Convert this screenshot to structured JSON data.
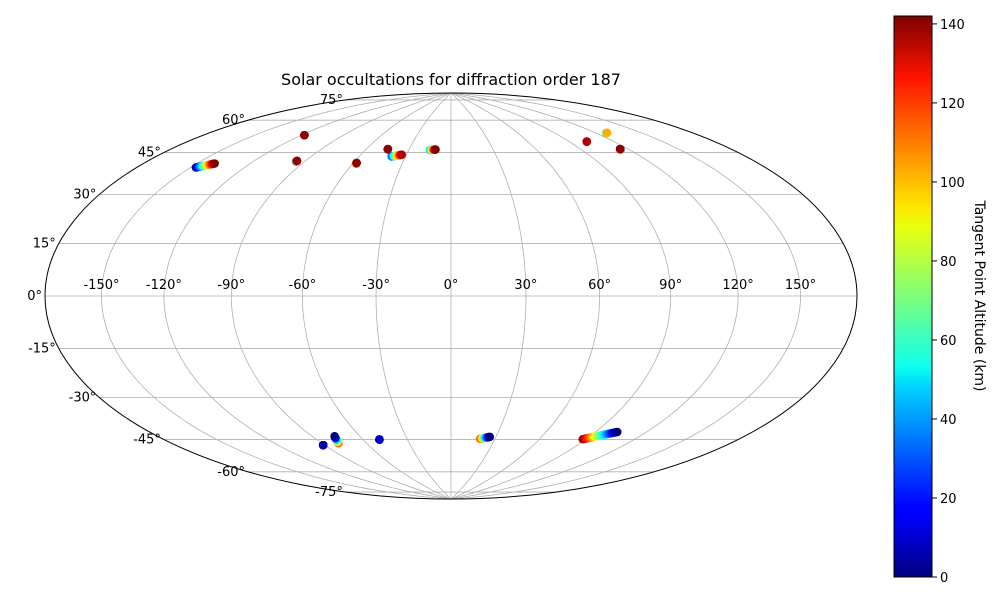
{
  "chart_data": {
    "type": "scatter",
    "projection": "hammer",
    "title": "Solar occultations for diffraction order 187",
    "xlabel": "",
    "ylabel": "",
    "lon_ticks": [
      "-150°",
      "-120°",
      "-90°",
      "-60°",
      "-30°",
      "0°",
      "30°",
      "60°",
      "90°",
      "120°",
      "150°"
    ],
    "lat_ticks": [
      "75°",
      "60°",
      "45°",
      "30°",
      "15°",
      "0°",
      "-15°",
      "-30°",
      "-45°",
      "-60°",
      "-75°"
    ],
    "grid": true,
    "colorbar": {
      "label": "Tangent Point Altitude (km)",
      "colormap": "jet",
      "range": [
        0,
        142
      ],
      "ticks": [
        "0",
        "20",
        "40",
        "60",
        "80",
        "100",
        "120",
        "140"
      ]
    },
    "occultations": [
      {
        "lon_start": -147,
        "lat_start": 44,
        "lon_end": -140,
        "lat_end": 46.5,
        "alt_start": 0,
        "alt_end": 142
      },
      {
        "lon_start": -118,
        "lat_start": 62,
        "lon_end": -118,
        "lat_end": 62,
        "alt_start": 135,
        "alt_end": 140
      },
      {
        "lon_start": -95,
        "lat_start": 52,
        "lon_end": -95,
        "lat_end": 52.3,
        "alt_start": 0,
        "alt_end": 140
      },
      {
        "lon_start": -58,
        "lat_start": 53.5,
        "lon_end": -58,
        "lat_end": 53.8,
        "alt_start": 30,
        "alt_end": 140
      },
      {
        "lon_start": -45,
        "lat_start": 60.5,
        "lon_end": -45,
        "lat_end": 60.7,
        "alt_start": 20,
        "alt_end": 140
      },
      {
        "lon_start": -39,
        "lat_start": 57.5,
        "lon_end": -33,
        "lat_end": 58.5,
        "alt_start": 25,
        "alt_end": 135
      },
      {
        "lon_start": -15,
        "lat_start": 61,
        "lon_end": -11,
        "lat_end": 61.3,
        "alt_start": 40,
        "alt_end": 142
      },
      {
        "lon_start": 102,
        "lat_start": 60.5,
        "lon_end": 102,
        "lat_end": 60.5,
        "alt_start": 0,
        "alt_end": 135
      },
      {
        "lon_start": 115,
        "lat_start": 55.5,
        "lon_end": 115,
        "lat_end": 55.7,
        "alt_start": 30,
        "alt_end": 140
      },
      {
        "lon_start": 127,
        "lat_start": 62,
        "lon_end": 128,
        "lat_end": 62,
        "alt_start": 40,
        "alt_end": 100
      },
      {
        "lon_start": -91,
        "lat_start": -59,
        "lon_end": -91,
        "lat_end": -59,
        "alt_start": 0,
        "alt_end": 5
      },
      {
        "lon_start": -79,
        "lat_start": -59,
        "lon_end": -76,
        "lat_end": -56,
        "alt_start": 120,
        "alt_end": 0
      },
      {
        "lon_start": -49,
        "lat_start": -59,
        "lon_end": -49,
        "lat_end": -59,
        "alt_start": 0,
        "alt_end": 10
      },
      {
        "lon_start": 20,
        "lat_start": -59.5,
        "lon_end": 26,
        "lat_end": -58.5,
        "alt_start": 120,
        "alt_end": 0
      },
      {
        "lon_start": 88,
        "lat_start": -56.5,
        "lon_end": 103,
        "lat_end": -52,
        "alt_start": 142,
        "alt_end": 0
      }
    ]
  }
}
